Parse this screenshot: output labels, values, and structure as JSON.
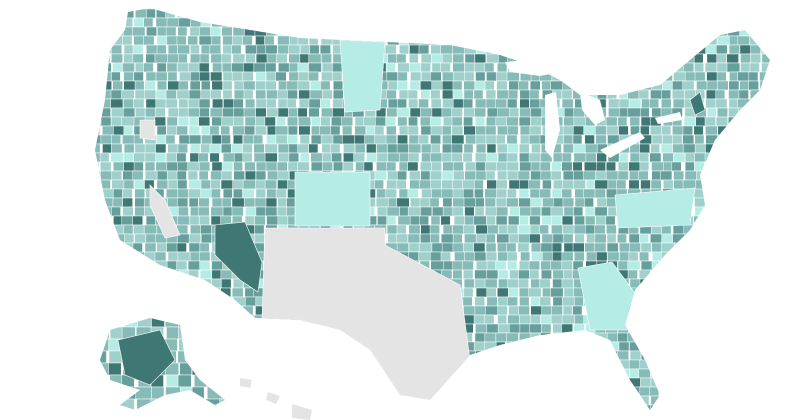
{
  "chart_data": {
    "type": "map",
    "colors": [
      "#e4e4e4",
      "#b6ece6",
      "#9fd0cb",
      "#86bbb7",
      "#669f9b",
      "#3f7774"
    ]
  }
}
